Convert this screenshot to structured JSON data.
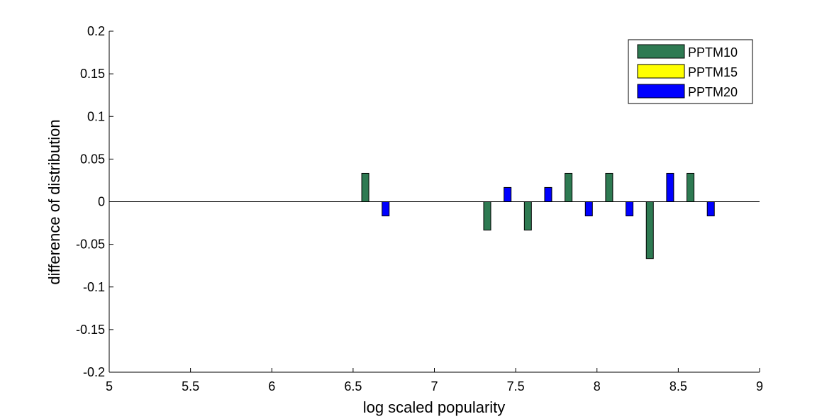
{
  "chart_data": {
    "type": "bar",
    "title": "",
    "xlabel": "log scaled popularity",
    "ylabel": "difference of distribution",
    "xlim": [
      5,
      9
    ],
    "ylim": [
      -0.2,
      0.2
    ],
    "xticks": [
      "5",
      "5.5",
      "6",
      "6.5",
      "7",
      "7.5",
      "8",
      "8.5",
      "9"
    ],
    "yticks": [
      "0.2",
      "0.15",
      "0.1",
      "0.05",
      "0",
      "-0.05",
      "-0.1",
      "-0.15",
      "-0.2"
    ],
    "grid": false,
    "legend_position": "top-right",
    "zero_line": true,
    "series": [
      {
        "name": "PPTM10",
        "color": "#2e7a52",
        "x": [
          6.575,
          7.325,
          7.575,
          7.825,
          8.075,
          8.325,
          8.575
        ],
        "values": [
          0.0333,
          -0.0333,
          -0.0333,
          0.0333,
          0.0333,
          -0.0667,
          0.0333
        ]
      },
      {
        "name": "PPTM15",
        "color": "#ffff00",
        "x": [],
        "values": []
      },
      {
        "name": "PPTM20",
        "color": "#0000ff",
        "x": [
          6.7,
          7.45,
          7.7,
          7.95,
          8.2,
          8.45,
          8.7
        ],
        "values": [
          -0.0167,
          0.0167,
          0.0167,
          -0.0167,
          -0.0167,
          0.0333,
          -0.0167
        ]
      }
    ]
  }
}
